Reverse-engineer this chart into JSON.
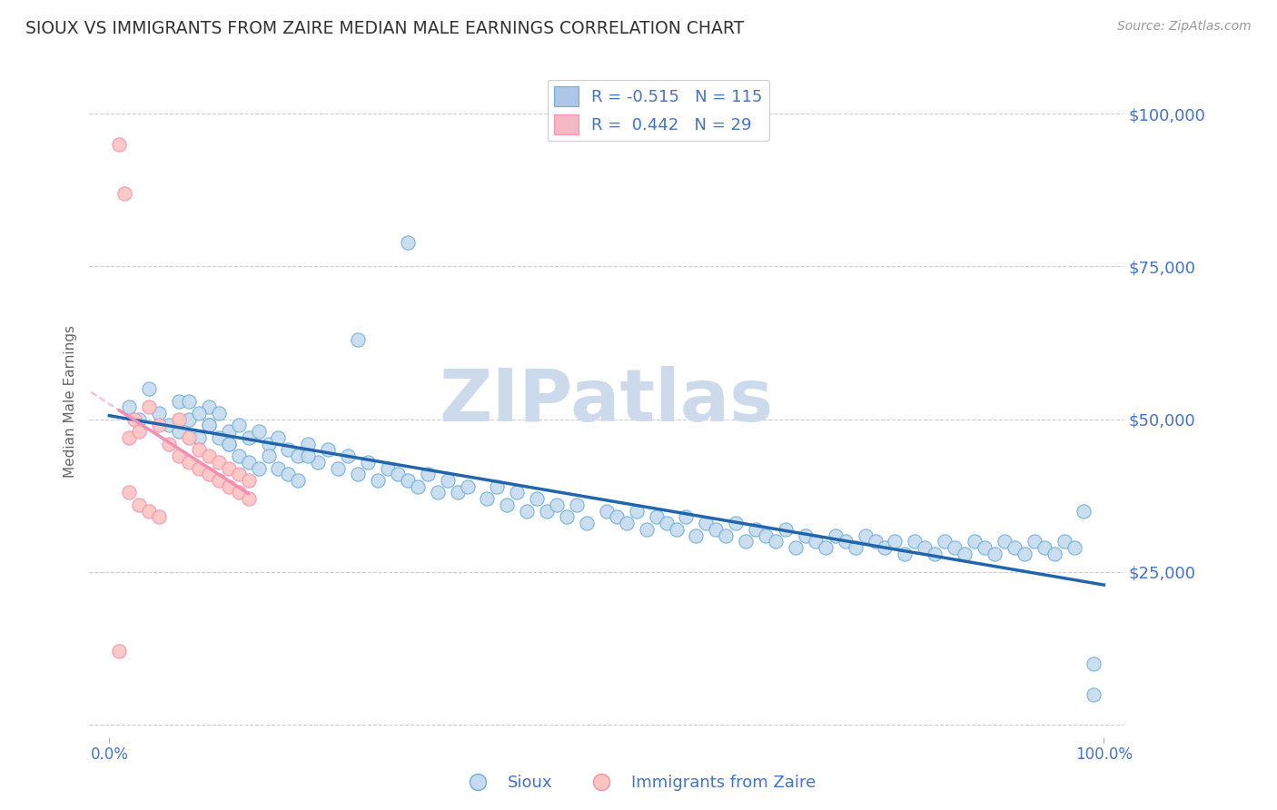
{
  "title": "SIOUX VS IMMIGRANTS FROM ZAIRE MEDIAN MALE EARNINGS CORRELATION CHART",
  "source": "Source: ZipAtlas.com",
  "ylabel": "Median Male Earnings",
  "xlim": [
    -0.02,
    1.02
  ],
  "ylim": [
    -2000,
    108000
  ],
  "yticks": [
    0,
    25000,
    50000,
    75000,
    100000
  ],
  "ytick_labels": [
    "",
    "$25,000",
    "$50,000",
    "$75,000",
    "$100,000"
  ],
  "blue_R": -0.515,
  "blue_N": 115,
  "pink_R": 0.442,
  "pink_N": 29,
  "blue_dot_face": "#c6dbef",
  "blue_dot_edge": "#6baed6",
  "pink_dot_face": "#fcc5c0",
  "pink_dot_edge": "#f48fb1",
  "trend_blue": "#2166ac",
  "trend_pink": "#f48fb1",
  "legend_blue_face": "#aec6e8",
  "legend_pink_face": "#f4b8c1",
  "watermark_color": "#ccdaeb",
  "title_color": "#333333",
  "tick_color": "#4472c4",
  "axis_label_color": "#666666",
  "grid_color": "#cccccc",
  "background_color": "#ffffff",
  "blue_x": [
    0.02,
    0.03,
    0.04,
    0.05,
    0.06,
    0.07,
    0.07,
    0.08,
    0.09,
    0.1,
    0.1,
    0.11,
    0.12,
    0.12,
    0.13,
    0.14,
    0.15,
    0.16,
    0.17,
    0.18,
    0.19,
    0.2,
    0.21,
    0.22,
    0.23,
    0.24,
    0.25,
    0.26,
    0.27,
    0.28,
    0.29,
    0.3,
    0.31,
    0.32,
    0.33,
    0.34,
    0.35,
    0.36,
    0.38,
    0.39,
    0.4,
    0.41,
    0.42,
    0.43,
    0.44,
    0.45,
    0.46,
    0.47,
    0.48,
    0.5,
    0.51,
    0.52,
    0.53,
    0.54,
    0.55,
    0.56,
    0.57,
    0.58,
    0.59,
    0.6,
    0.61,
    0.62,
    0.63,
    0.64,
    0.65,
    0.66,
    0.67,
    0.68,
    0.69,
    0.7,
    0.71,
    0.72,
    0.73,
    0.74,
    0.75,
    0.76,
    0.77,
    0.78,
    0.79,
    0.8,
    0.81,
    0.82,
    0.83,
    0.84,
    0.85,
    0.86,
    0.87,
    0.88,
    0.89,
    0.9,
    0.91,
    0.92,
    0.93,
    0.94,
    0.95,
    0.96,
    0.97,
    0.98,
    0.99,
    0.99,
    0.08,
    0.09,
    0.1,
    0.11,
    0.12,
    0.13,
    0.14,
    0.15,
    0.16,
    0.17,
    0.18,
    0.19,
    0.2,
    0.25,
    0.3
  ],
  "blue_y": [
    52000,
    50000,
    55000,
    51000,
    49000,
    53000,
    48000,
    50000,
    47000,
    52000,
    49000,
    51000,
    48000,
    46000,
    49000,
    47000,
    48000,
    46000,
    47000,
    45000,
    44000,
    46000,
    43000,
    45000,
    42000,
    44000,
    41000,
    43000,
    40000,
    42000,
    41000,
    40000,
    39000,
    41000,
    38000,
    40000,
    38000,
    39000,
    37000,
    39000,
    36000,
    38000,
    35000,
    37000,
    35000,
    36000,
    34000,
    36000,
    33000,
    35000,
    34000,
    33000,
    35000,
    32000,
    34000,
    33000,
    32000,
    34000,
    31000,
    33000,
    32000,
    31000,
    33000,
    30000,
    32000,
    31000,
    30000,
    32000,
    29000,
    31000,
    30000,
    29000,
    31000,
    30000,
    29000,
    31000,
    30000,
    29000,
    30000,
    28000,
    30000,
    29000,
    28000,
    30000,
    29000,
    28000,
    30000,
    29000,
    28000,
    30000,
    29000,
    28000,
    30000,
    29000,
    28000,
    30000,
    29000,
    35000,
    10000,
    5000,
    53000,
    51000,
    49000,
    47000,
    46000,
    44000,
    43000,
    42000,
    44000,
    42000,
    41000,
    40000,
    44000,
    63000,
    79000
  ],
  "pink_x": [
    0.01,
    0.015,
    0.02,
    0.025,
    0.03,
    0.04,
    0.05,
    0.06,
    0.07,
    0.07,
    0.08,
    0.08,
    0.09,
    0.09,
    0.1,
    0.1,
    0.11,
    0.11,
    0.12,
    0.12,
    0.13,
    0.13,
    0.14,
    0.14,
    0.02,
    0.03,
    0.04,
    0.05,
    0.01
  ],
  "pink_y": [
    95000,
    87000,
    47000,
    50000,
    48000,
    52000,
    49000,
    46000,
    50000,
    44000,
    47000,
    43000,
    45000,
    42000,
    44000,
    41000,
    43000,
    40000,
    42000,
    39000,
    41000,
    38000,
    40000,
    37000,
    38000,
    36000,
    35000,
    34000,
    12000
  ]
}
